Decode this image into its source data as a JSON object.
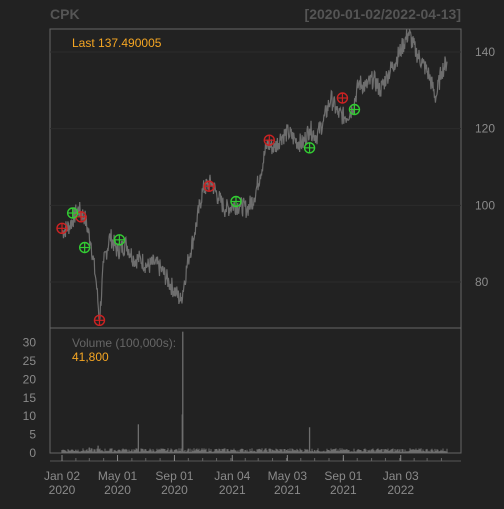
{
  "header": {
    "symbol": "CPK",
    "date_range": "[2020-01-02/2022-04-13]"
  },
  "colors": {
    "background": "#222222",
    "panel_border": "#666666",
    "grid": "#2c2c2c",
    "price_line": "#6e6e6e",
    "axis_text": "#8a8a8a",
    "last_value": "#f5a623",
    "buy_marker": "#33cc33",
    "sell_marker": "#cc2222"
  },
  "chart_data": [
    {
      "type": "line",
      "panel": "price",
      "legend_label": "Last",
      "last_value": "137.490005",
      "x_range": [
        "2020-01-02",
        "2022-04-13"
      ],
      "ylim": [
        68,
        146
      ],
      "y_ticks": [
        80,
        100,
        120,
        140
      ],
      "grid": true,
      "series": [
        {
          "x": [
            "2020-01-02",
            "2020-01-20",
            "2020-02-05",
            "2020-02-20",
            "2020-03-05",
            "2020-03-16",
            "2020-03-23",
            "2020-04-01",
            "2020-04-15",
            "2020-05-01",
            "2020-05-20",
            "2020-06-05",
            "2020-06-20",
            "2020-07-05",
            "2020-07-20",
            "2020-08-05",
            "2020-08-20",
            "2020-09-05",
            "2020-09-15",
            "2020-10-01",
            "2020-10-15",
            "2020-11-01",
            "2020-11-20",
            "2020-12-05",
            "2020-12-20",
            "2021-01-05",
            "2021-01-20",
            "2021-02-05",
            "2021-02-20",
            "2021-03-05",
            "2021-03-20",
            "2021-04-05",
            "2021-04-20",
            "2021-05-05",
            "2021-05-20",
            "2021-06-05",
            "2021-06-20",
            "2021-07-05",
            "2021-07-20",
            "2021-08-05",
            "2021-08-20",
            "2021-09-05",
            "2021-09-20",
            "2021-10-05",
            "2021-10-20",
            "2021-11-05",
            "2021-11-20",
            "2021-12-05",
            "2021-12-20",
            "2022-01-05",
            "2022-01-20",
            "2022-02-05",
            "2022-02-20",
            "2022-03-05",
            "2022-03-20",
            "2022-04-01",
            "2022-04-13"
          ],
          "values": [
            93,
            95,
            99,
            97,
            90,
            80,
            70,
            85,
            92,
            88,
            90,
            86,
            86,
            84,
            85,
            83,
            80,
            77,
            75,
            86,
            93,
            104,
            106,
            102,
            99,
            100,
            100,
            99,
            102,
            108,
            116,
            115,
            118,
            119,
            117,
            116,
            120,
            118,
            122,
            128,
            124,
            123,
            125,
            132,
            131,
            133,
            130,
            134,
            137,
            141,
            145,
            140,
            137,
            134,
            128,
            135,
            137.49
          ]
        }
      ],
      "signals": {
        "buy": [
          {
            "x": "2020-01-25",
            "y": 98
          },
          {
            "x": "2020-02-20",
            "y": 89
          },
          {
            "x": "2020-05-05",
            "y": 91
          },
          {
            "x": "2021-01-12",
            "y": 101
          },
          {
            "x": "2021-06-20",
            "y": 115
          },
          {
            "x": "2021-09-25",
            "y": 125
          }
        ],
        "sell": [
          {
            "x": "2020-01-02",
            "y": 94
          },
          {
            "x": "2020-02-12",
            "y": 97
          },
          {
            "x": "2020-03-23",
            "y": 70
          },
          {
            "x": "2020-11-15",
            "y": 105
          },
          {
            "x": "2021-03-25",
            "y": 117
          },
          {
            "x": "2021-08-30",
            "y": 128
          }
        ]
      }
    },
    {
      "type": "bar",
      "panel": "volume",
      "legend_label": "Volume (100,000s):",
      "last_value": "41,800",
      "ylim": [
        0,
        34
      ],
      "y_ticks": [
        0,
        5,
        10,
        15,
        20,
        25,
        30
      ],
      "series": [
        {
          "x": [
            "2020-01-02",
            "2020-02-01",
            "2020-03-01",
            "2020-03-20",
            "2020-04-15",
            "2020-05-15",
            "2020-06-01",
            "2020-06-15",
            "2020-07-01",
            "2020-08-01",
            "2020-09-01",
            "2020-09-18",
            "2020-09-19",
            "2020-10-01",
            "2020-11-01",
            "2020-12-01",
            "2021-01-01",
            "2021-02-01",
            "2021-03-01",
            "2021-04-01",
            "2021-05-01",
            "2021-06-01",
            "2021-06-20",
            "2021-07-01",
            "2021-08-01",
            "2021-09-01",
            "2021-10-01",
            "2021-11-01",
            "2021-12-01",
            "2022-01-01",
            "2022-02-01",
            "2022-03-01",
            "2022-04-13"
          ],
          "values": [
            0.8,
            0.9,
            1.5,
            2.0,
            1.2,
            1.0,
            0.9,
            7.8,
            1.0,
            0.7,
            0.8,
            10.5,
            33.0,
            1.2,
            0.9,
            1.1,
            0.9,
            0.8,
            1.0,
            0.9,
            0.8,
            0.9,
            7.0,
            0.8,
            0.7,
            0.9,
            0.8,
            0.9,
            1.0,
            0.9,
            0.8,
            0.9,
            0.42
          ]
        }
      ]
    }
  ],
  "x_axis": {
    "ticks": [
      {
        "x": "2020-01-02",
        "label": "Jan 02",
        "year": "2020"
      },
      {
        "x": "2020-05-01",
        "label": "May 01",
        "year": "2020"
      },
      {
        "x": "2020-09-01",
        "label": "Sep 01",
        "year": "2020"
      },
      {
        "x": "2021-01-04",
        "label": "Jan 04",
        "year": "2021"
      },
      {
        "x": "2021-05-03",
        "label": "May 03",
        "year": "2021"
      },
      {
        "x": "2021-09-01",
        "label": "Sep 01",
        "year": "2021"
      },
      {
        "x": "2022-01-03",
        "label": "Jan 03",
        "year": "2022"
      }
    ]
  }
}
